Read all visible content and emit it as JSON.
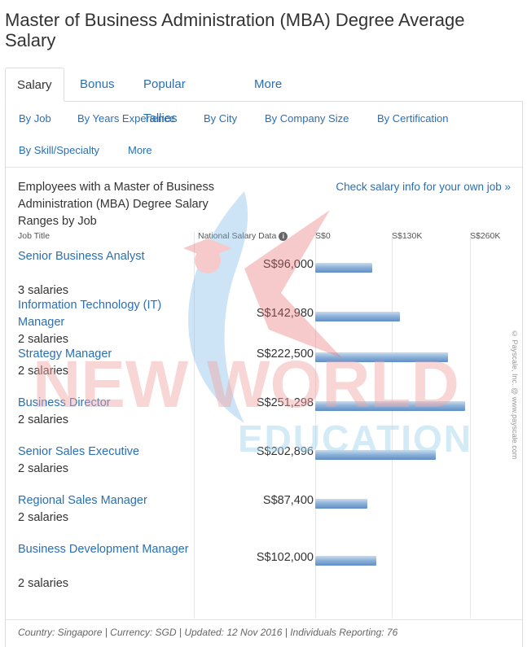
{
  "page": {
    "title": "Master of Business Administration (MBA) Degree Average Salary"
  },
  "tabs": [
    {
      "label": "Salary",
      "active": true
    },
    {
      "label": "Bonus"
    },
    {
      "label": "Popular Tallies"
    },
    {
      "label": "More"
    }
  ],
  "subnav": [
    {
      "label": "By Job"
    },
    {
      "label": "By Years Experience"
    },
    {
      "label": "By City"
    },
    {
      "label": "By Company Size"
    },
    {
      "label": "By Certification"
    },
    {
      "label": "By Skill/Specialty"
    },
    {
      "label": "More"
    }
  ],
  "chart": {
    "title": "Employees with a Master of Business Administration (MBA) Degree Salary Ranges by Job",
    "check_link": "Check salary info for your own job »",
    "col_job": "Job Title",
    "col_national": "National Salary Data",
    "info_icon": "i",
    "ticks": [
      "S$0",
      "S$130K",
      "S$260K"
    ],
    "copyright": "© Payscale, Inc. @ www.payscale.com"
  },
  "chart_data": {
    "type": "bar",
    "orientation": "horizontal",
    "categories": [
      "Senior Business Analyst",
      "Information Technology (IT) Manager",
      "Strategy Manager",
      "Business Director",
      "Senior Sales Executive",
      "Regional Sales Manager",
      "Business Development Manager"
    ],
    "values": [
      96000,
      142980,
      222500,
      251298,
      202896,
      87400,
      102000
    ],
    "value_labels": [
      "S$96,000",
      "S$142,980",
      "S$222,500",
      "S$251,298",
      "S$202,896",
      "S$87,400",
      "S$102,000"
    ],
    "counts": [
      "3 salaries",
      "2 salaries",
      "2 salaries",
      "2 salaries",
      "2 salaries",
      "2 salaries",
      "2 salaries"
    ],
    "xlim": [
      0,
      260000
    ],
    "xticks": [
      "S$0",
      "S$130K",
      "S$260K"
    ],
    "color": "#7aa3d1"
  },
  "footer": {
    "text": "Country: Singapore | Currency: SGD | Updated: 12 Nov 2016 | Individuals Reporting: 76"
  },
  "watermark": {
    "line1": "NEW WORLD",
    "line2": "EDUCATION",
    "colors": {
      "red": "#f2a5a5",
      "blue": "#a8d8f0"
    }
  }
}
